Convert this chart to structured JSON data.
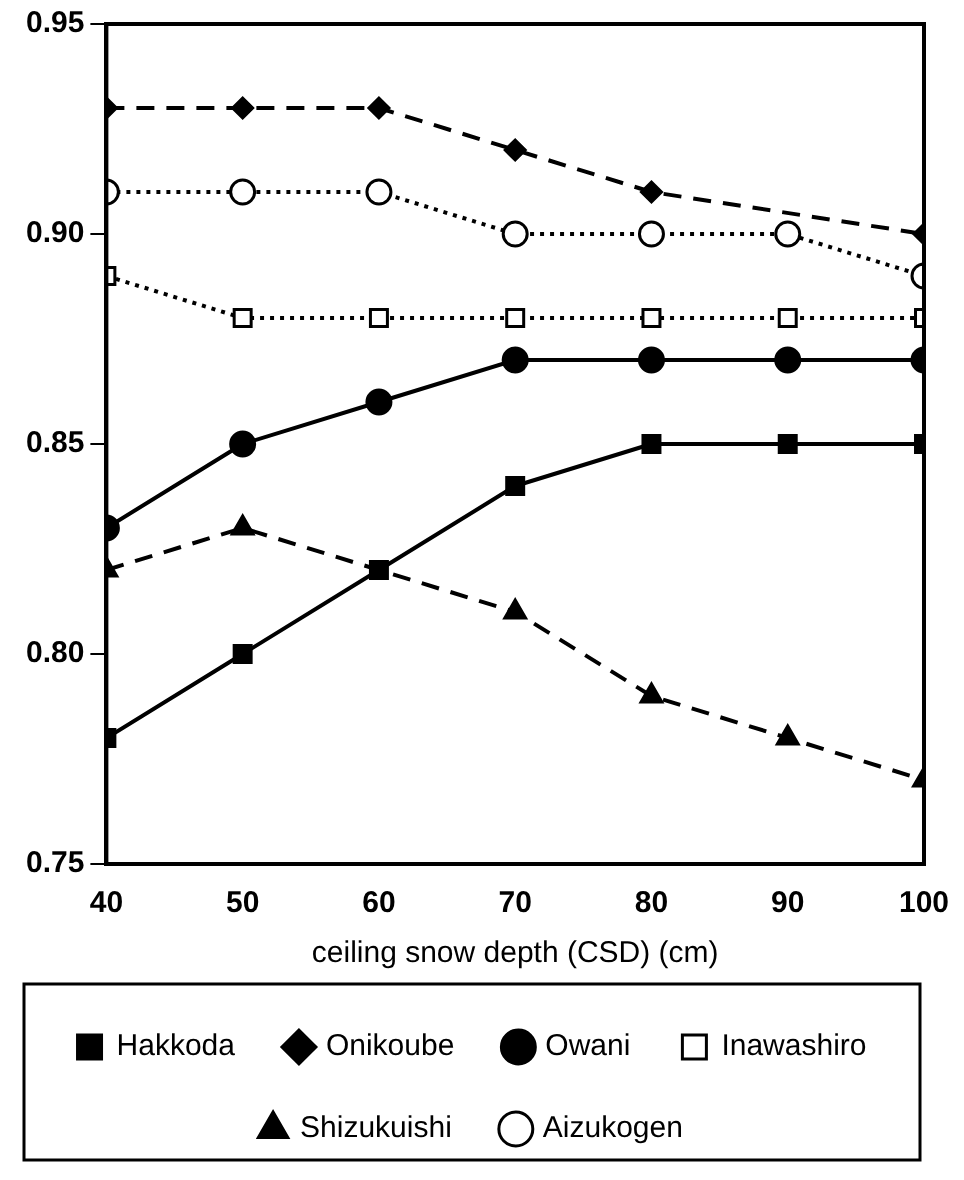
{
  "chart_data": {
    "type": "line",
    "xlabel": "ceiling snow depth (CSD) (cm)",
    "x": [
      40,
      50,
      60,
      70,
      80,
      90,
      100
    ],
    "xlim": [
      40,
      100
    ],
    "xticks": [
      40,
      50,
      60,
      70,
      80,
      90,
      100
    ],
    "ylim": [
      0.75,
      0.95
    ],
    "yticks": [
      {
        "value": 0.75,
        "label": "0.75"
      },
      {
        "value": 0.8,
        "label": "0.80"
      },
      {
        "value": 0.85,
        "label": "0.85"
      },
      {
        "value": 0.9,
        "label": "0.90"
      },
      {
        "value": 0.95,
        "label": "0.95"
      }
    ],
    "grid": false,
    "legend": "bottom",
    "series": [
      {
        "name": "Hakkoda",
        "color": "#000000",
        "marker": "square",
        "line_style": "solid",
        "values": [
          0.78,
          0.8,
          0.82,
          0.84,
          0.85,
          0.85,
          0.85
        ]
      },
      {
        "name": "Onikoube",
        "color": "#000000",
        "marker": "diamond",
        "line_style": "dashed",
        "values": [
          0.93,
          0.93,
          0.93,
          0.92,
          0.91,
          null,
          0.9
        ]
      },
      {
        "name": "Owani",
        "color": "#000000",
        "marker": "circle",
        "line_style": "solid",
        "values": [
          0.83,
          0.85,
          0.86,
          0.87,
          0.87,
          0.87,
          0.87
        ]
      },
      {
        "name": "Inawashiro",
        "color": "#000000",
        "marker": "square-open",
        "line_style": "dotted",
        "values": [
          0.89,
          0.88,
          0.88,
          0.88,
          0.88,
          0.88,
          0.88
        ]
      },
      {
        "name": "Shizukuishi",
        "color": "#000000",
        "marker": "triangle",
        "line_style": "dashed",
        "values": [
          0.82,
          0.83,
          null,
          0.81,
          0.79,
          0.78,
          0.77
        ]
      },
      {
        "name": "Aizukogen",
        "color": "#000000",
        "marker": "circle-open",
        "line_style": "dotted",
        "values": [
          0.91,
          0.91,
          0.91,
          0.9,
          0.9,
          0.9,
          0.89
        ]
      }
    ]
  }
}
